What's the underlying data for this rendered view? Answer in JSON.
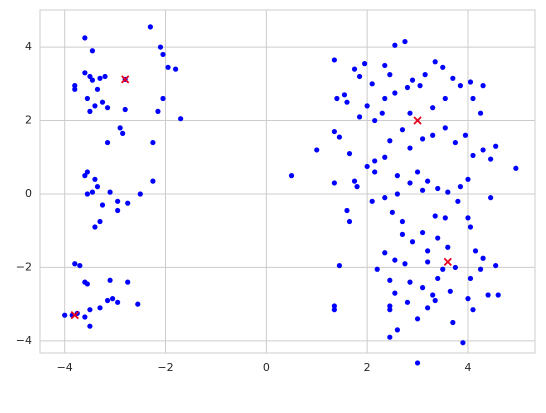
{
  "chart_data": {
    "type": "scatter",
    "xlim": [
      -4.49,
      5.33
    ],
    "ylim": [
      -4.33,
      5.01
    ],
    "xticks": [
      {
        "value": -4,
        "label": "−4"
      },
      {
        "value": -2,
        "label": "−2"
      },
      0,
      2,
      4
    ],
    "yticks": [
      {
        "value": -4,
        "label": "−4"
      },
      {
        "value": -2,
        "label": "−2"
      },
      0,
      2,
      4
    ],
    "grid": true,
    "series": [
      {
        "color": "#0000ff",
        "marker": "circle",
        "x": [
          -2.3,
          -2.1,
          -2.05,
          -3.6,
          -3.45,
          -1.8,
          -1.95,
          -3.8,
          -3.8,
          -3.6,
          -3.5,
          -3.45,
          -3.3,
          -3.2,
          -3.35,
          -3.55,
          -3.4,
          -3.25,
          -3.15,
          -3.5,
          -2.8,
          -2.9,
          -2.85,
          -2.8,
          -2.15,
          -2.05,
          -1.7,
          -3.15,
          -2.25,
          -3.6,
          -3.55,
          -3.4,
          -3.35,
          -3.45,
          -3.55,
          -3.1,
          -2.95,
          -2.75,
          -2.5,
          -2.25,
          -3.25,
          -2.95,
          -3.3,
          -3.4,
          -3.8,
          -3.7,
          -3.6,
          -3.55,
          -3.1,
          -2.75,
          -2.95,
          -3.05,
          -3.15,
          -3.5,
          -3.6,
          -3.5,
          -3.75,
          -3.85,
          -4.0,
          -2.55,
          -3.3,
          1.35,
          1.4,
          1.55,
          1.6,
          1.75,
          1.85,
          1.95,
          1.85,
          2.1,
          2.35,
          2.45,
          2.55,
          2.75,
          2.35,
          2.55,
          2.8,
          2.9,
          3.05,
          3.15,
          3.35,
          3.5,
          3.7,
          3.85,
          4.05,
          4.3,
          4.1,
          4.25,
          3.55,
          3.3,
          2.85,
          2.3,
          2.15,
          1.35,
          1.45,
          1.65,
          1.0,
          0.5,
          1.35,
          1.75,
          1.8,
          2.0,
          2.15,
          2.35,
          2.45,
          2.7,
          2.85,
          3.1,
          3.3,
          3.55,
          3.75,
          3.95,
          4.1,
          4.3,
          4.55,
          4.95,
          4.45,
          3.0,
          3.2,
          3.4,
          3.6,
          3.85,
          4.0,
          3.1,
          2.85,
          2.6,
          2.35,
          2.1,
          1.6,
          1.65,
          2.5,
          2.7,
          3.35,
          3.55,
          4.0,
          4.05,
          2.7,
          2.9,
          3.1,
          3.4,
          3.6,
          3.2,
          2.35,
          2.55,
          2.75,
          3.2,
          3.5,
          3.75,
          4.15,
          4.3,
          4.55,
          4.25,
          2.2,
          2.45,
          2.85,
          3.1,
          3.4,
          4.05,
          4.4,
          4.6,
          4.0,
          3.65,
          2.55,
          2.8,
          3.2,
          3.3,
          2.45,
          3.7,
          4.1,
          3.9,
          3.0,
          2.6,
          2.45,
          1.45,
          1.35,
          1.35,
          2.45,
          3.0,
          3.35,
          2.15,
          2.6,
          3.8,
          4.45,
          2.0
        ],
        "y": [
          4.55,
          4.0,
          3.8,
          4.25,
          3.9,
          3.4,
          3.45,
          2.95,
          2.85,
          3.3,
          3.2,
          3.1,
          3.15,
          3.2,
          2.85,
          2.6,
          2.4,
          2.5,
          2.35,
          2.25,
          2.3,
          1.8,
          1.65,
          3.12,
          2.25,
          2.6,
          2.05,
          1.4,
          1.4,
          0.5,
          0.6,
          0.4,
          0.2,
          0.05,
          0.0,
          0.05,
          -0.2,
          -0.25,
          0.0,
          0.35,
          -0.3,
          -0.45,
          -0.75,
          -0.9,
          -1.9,
          -1.95,
          -2.4,
          -2.45,
          -2.35,
          -2.4,
          -2.95,
          -2.85,
          -2.9,
          -3.15,
          -3.35,
          -3.6,
          -3.25,
          -3.3,
          -3.3,
          -3.0,
          -3.1,
          3.65,
          2.6,
          2.7,
          2.5,
          3.4,
          3.2,
          3.55,
          2.1,
          3.0,
          3.5,
          3.25,
          4.05,
          4.15,
          2.6,
          2.75,
          2.9,
          3.1,
          2.95,
          3.25,
          3.6,
          3.45,
          3.15,
          2.95,
          3.05,
          2.95,
          2.6,
          2.2,
          2.6,
          2.35,
          2.2,
          2.2,
          2.0,
          1.7,
          1.55,
          1.1,
          1.2,
          0.5,
          0.3,
          0.35,
          0.2,
          0.75,
          0.6,
          1.0,
          1.45,
          1.75,
          1.25,
          1.5,
          1.6,
          1.8,
          1.4,
          1.6,
          1.05,
          1.2,
          1.3,
          0.7,
          0.95,
          0.6,
          0.35,
          0.15,
          0.05,
          0.2,
          0.4,
          0.1,
          0.3,
          0.0,
          -0.1,
          -0.2,
          -0.45,
          -0.75,
          -0.5,
          -0.75,
          -0.6,
          -0.65,
          -0.65,
          -0.9,
          -1.1,
          -1.3,
          -1.05,
          -1.2,
          -1.45,
          -1.55,
          -1.6,
          -1.8,
          -1.9,
          -1.85,
          -2.05,
          -2.0,
          -1.55,
          -1.75,
          -1.95,
          -2.05,
          -2.05,
          -2.35,
          -2.4,
          -2.55,
          -2.3,
          -2.3,
          -2.75,
          -2.75,
          -2.85,
          -2.65,
          -2.7,
          -2.95,
          -3.1,
          -2.75,
          -3.15,
          -3.5,
          -3.15,
          -4.05,
          -3.4,
          -3.7,
          -3.05,
          -1.95,
          -3.05,
          -3.15,
          -3.9,
          -4.6,
          -2.9,
          0.9,
          0.5,
          -0.2,
          -0.1,
          2.4
        ]
      },
      {
        "color": "#e8001c",
        "marker": "x",
        "x": [
          -2.8,
          3.0,
          3.6,
          -3.8
        ],
        "y": [
          3.12,
          2.0,
          -1.85,
          -3.3
        ]
      }
    ]
  }
}
